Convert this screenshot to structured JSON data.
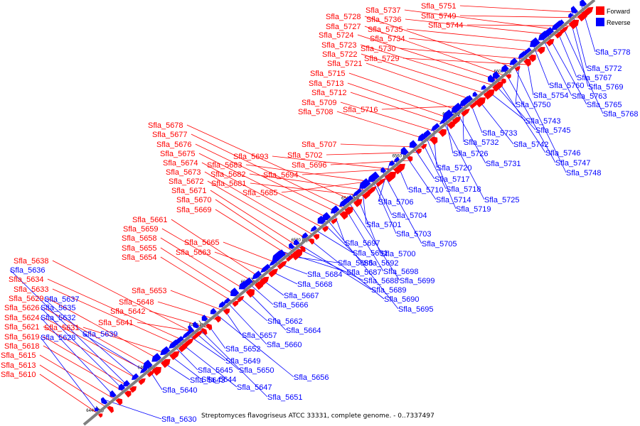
{
  "caption": "Streptomyces flavogriseus ATCC 33331, complete genome. - 0..7337497",
  "legend": [
    {
      "label": "Forward",
      "color": "#ff0000"
    },
    {
      "label": "Reverse",
      "color": "#0000ff"
    }
  ],
  "colors": {
    "forward": "#ff0000",
    "reverse": "#0000ff",
    "backbone": "#808080"
  },
  "scale_ticks": [
    "6440 kbp",
    "6460 kbp",
    "6480 kbp",
    "6500 kbp",
    "6520 kbp",
    "6540 kbp",
    "6560 kbp",
    "6580 kbp",
    "6600 kbp"
  ],
  "forward_genes": [
    "Sfla_5610",
    "Sfla_5613",
    "Sfla_5615",
    "Sfla_5618",
    "Sfla_5619",
    "Sfla_5621",
    "Sfla_5624",
    "Sfla_5626",
    "Sfla_5629",
    "Sfla_5631",
    "Sfla_5633",
    "Sfla_5634",
    "Sfla_5638",
    "Sfla_5641",
    "Sfla_5642",
    "Sfla_5648",
    "Sfla_5653",
    "Sfla_5654",
    "Sfla_5655",
    "Sfla_5658",
    "Sfla_5659",
    "Sfla_5661",
    "Sfla_5663",
    "Sfla_5665",
    "Sfla_5669",
    "Sfla_5670",
    "Sfla_5671",
    "Sfla_5672",
    "Sfla_5673",
    "Sfla_5674",
    "Sfla_5675",
    "Sfla_5676",
    "Sfla_5677",
    "Sfla_5678",
    "Sfla_5681",
    "Sfla_5682",
    "Sfla_5683",
    "Sfla_5685",
    "Sfla_5693",
    "Sfla_5694",
    "Sfla_5696",
    "Sfla_5702",
    "Sfla_5707",
    "Sfla_5708",
    "Sfla_5709",
    "Sfla_5712",
    "Sfla_5713",
    "Sfla_5715",
    "Sfla_5716",
    "Sfla_5721",
    "Sfla_5722",
    "Sfla_5723",
    "Sfla_5724",
    "Sfla_5727",
    "Sfla_5728",
    "Sfla_5729",
    "Sfla_5730",
    "Sfla_5734",
    "Sfla_5735",
    "Sfla_5736",
    "Sfla_5737",
    "Sfla_5744",
    "Sfla_5749",
    "Sfla_5751"
  ],
  "reverse_genes": [
    "Sfla_5628",
    "Sfla_5630",
    "Sfla_5632",
    "Sfla_5635",
    "Sfla_5636",
    "Sfla_5637",
    "Sfla_5639",
    "Sfla_5640",
    "Sfla_5643",
    "Sfla_5644",
    "Sfla_5645",
    "Sfla_5647",
    "Sfla_5649",
    "Sfla_5650",
    "Sfla_5651",
    "Sfla_5652",
    "Sfla_5656",
    "Sfla_5657",
    "Sfla_5660",
    "Sfla_5662",
    "Sfla_5664",
    "Sfla_5666",
    "Sfla_5667",
    "Sfla_5668",
    "Sfla_5684",
    "Sfla_5686",
    "Sfla_5687",
    "Sfla_5688",
    "Sfla_5689",
    "Sfla_5690",
    "Sfla_5691",
    "Sfla_5692",
    "Sfla_5695",
    "Sfla_5697",
    "Sfla_5698",
    "Sfla_5699",
    "Sfla_5700",
    "Sfla_5701",
    "Sfla_5703",
    "Sfla_5704",
    "Sfla_5705",
    "Sfla_5706",
    "Sfla_5710",
    "Sfla_5714",
    "Sfla_5717",
    "Sfla_5718",
    "Sfla_5719",
    "Sfla_5720",
    "Sfla_5725",
    "Sfla_5726",
    "Sfla_5731",
    "Sfla_5732",
    "Sfla_5733",
    "Sfla_5742",
    "Sfla_5743",
    "Sfla_5745",
    "Sfla_5746",
    "Sfla_5747",
    "Sfla_5748",
    "Sfla_5750",
    "Sfla_5754",
    "Sfla_5760",
    "Sfla_5763",
    "Sfla_5765",
    "Sfla_5767",
    "Sfla_5768",
    "Sfla_5769",
    "Sfla_5772",
    "Sfla_5778"
  ]
}
